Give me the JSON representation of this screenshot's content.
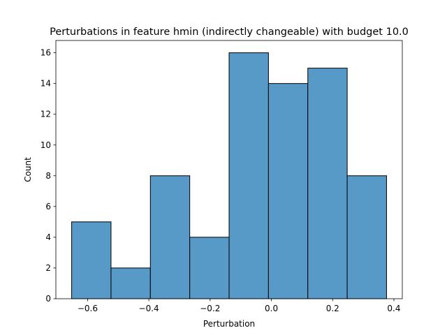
{
  "chart_data": {
    "type": "bar",
    "title": "Perturbations in feature hmin (indirectly changeable) with budget 10.0",
    "xlabel": "Perturbation",
    "ylabel": "Count",
    "bin_edges": [
      -0.652,
      -0.5235,
      -0.395,
      -0.2665,
      -0.138,
      -0.0095,
      0.119,
      0.2475,
      0.376
    ],
    "values": [
      5,
      2,
      8,
      4,
      16,
      14,
      15,
      8
    ],
    "xlim": [
      -0.7035,
      0.4274
    ],
    "ylim": [
      0,
      16.8
    ],
    "xticks": [
      -0.6,
      -0.4,
      -0.2,
      0.0,
      0.2,
      0.4
    ],
    "xtick_labels": [
      "−0.6",
      "−0.4",
      "−0.2",
      "0.0",
      "0.2",
      "0.4"
    ],
    "yticks": [
      0,
      2,
      4,
      6,
      8,
      10,
      12,
      14,
      16
    ],
    "ytick_labels": [
      "0",
      "2",
      "4",
      "6",
      "8",
      "10",
      "12",
      "14",
      "16"
    ],
    "bar_color": "#5799c7",
    "edge_color": "#000000",
    "grid": false,
    "legend": "none"
  }
}
